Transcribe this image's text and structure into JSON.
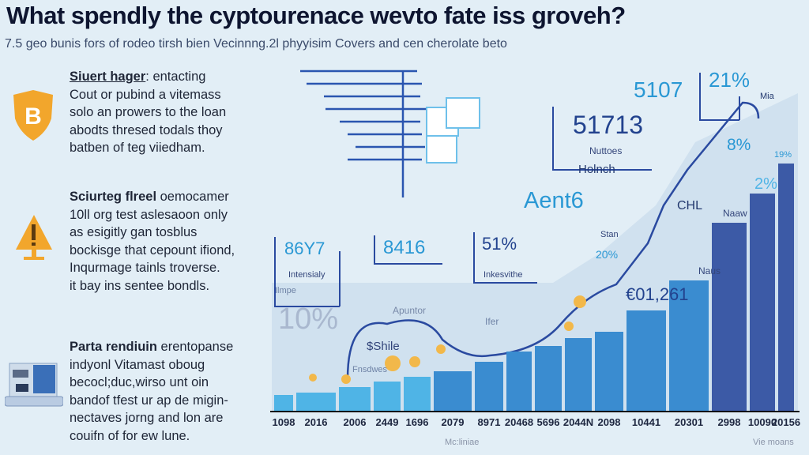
{
  "title": "What spendly the cyptourenace wevto fate iss groveh?",
  "subtitle": "7.5 geo bunis fors of rodeo tirsh bien Vecinnng.2l phyyisim Covers and cen cherolate beto",
  "sections": [
    {
      "icon": "bitcoin-shield-icon",
      "heading": "Siuert hager",
      "rest": ": entacting",
      "lines": [
        "Cout or pubind a vitemass",
        "solo an prowers to the loan",
        "abodts thresed todals thoy",
        "batben of teg viiedham."
      ]
    },
    {
      "icon": "warning-icon",
      "heading": "Sciurteg flreel",
      "rest": " oemocamer",
      "lines": [
        "10ll org test aslesaoon only",
        "as esigitly gan tosblus",
        "bockisge that cepount ifiond,",
        "Inqurmage tainls troverse.",
        "it bay ins sentee bondls."
      ]
    },
    {
      "icon": "laptop-device-icon",
      "heading": "Parta rendiuin",
      "rest": " erentopanse",
      "lines": [
        "indyonl Vitamast oboug",
        "becocl;duc,wirso unt oin",
        "bandof tfest ur ap de migin-",
        "nectaves jorng and lon are",
        "couifn of for ew lune."
      ]
    }
  ],
  "annotations": {
    "a5107": "5107",
    "a21": "21%",
    "a51713": "51713",
    "notices": "Nuttoes",
    "holnch": "Holnch",
    "aent": "Aent6",
    "chl": "CHL",
    "a8": "8%",
    "mia": "Mia",
    "a19": "19%",
    "a2": "2%",
    "naaw": "Naaw",
    "naus": "Naus",
    "euro": "€01,261",
    "a20": "20%",
    "stan": "Stan",
    "b8697": "86Y7",
    "intensiaiy": "Intensialy",
    "b8416": "8416",
    "b51": "51%",
    "intensive": "Inkesvithe",
    "ilmpe": "Ilmpe",
    "p10": "10%",
    "apuntor": "Apuntor",
    "sshile": "$Shile",
    "fnsdwes": "Fnsdwes",
    "ifer": "Ifer",
    "xlabel1": "Mc:liniae",
    "xlabel2": "Vie moans"
  },
  "chart_data": {
    "type": "bar",
    "title": "",
    "categories": [
      "1098",
      "2016",
      "2006",
      "2449",
      "1696",
      "2079",
      "8971",
      "20468",
      "5696",
      "2044N",
      "2098",
      "10441",
      "20301",
      "2998",
      "10090",
      "20156"
    ],
    "values": [
      20,
      23,
      30,
      37,
      43,
      50,
      62,
      75,
      82,
      92,
      100,
      127,
      165,
      238,
      275,
      313
    ],
    "ylim": [
      0,
      320
    ],
    "xlabel": "Mc:liniae",
    "ylabel": "",
    "colors": {
      "light": "#4fb4e6",
      "mid": "#3a8cd0",
      "dark": "#3c5aa6"
    }
  }
}
